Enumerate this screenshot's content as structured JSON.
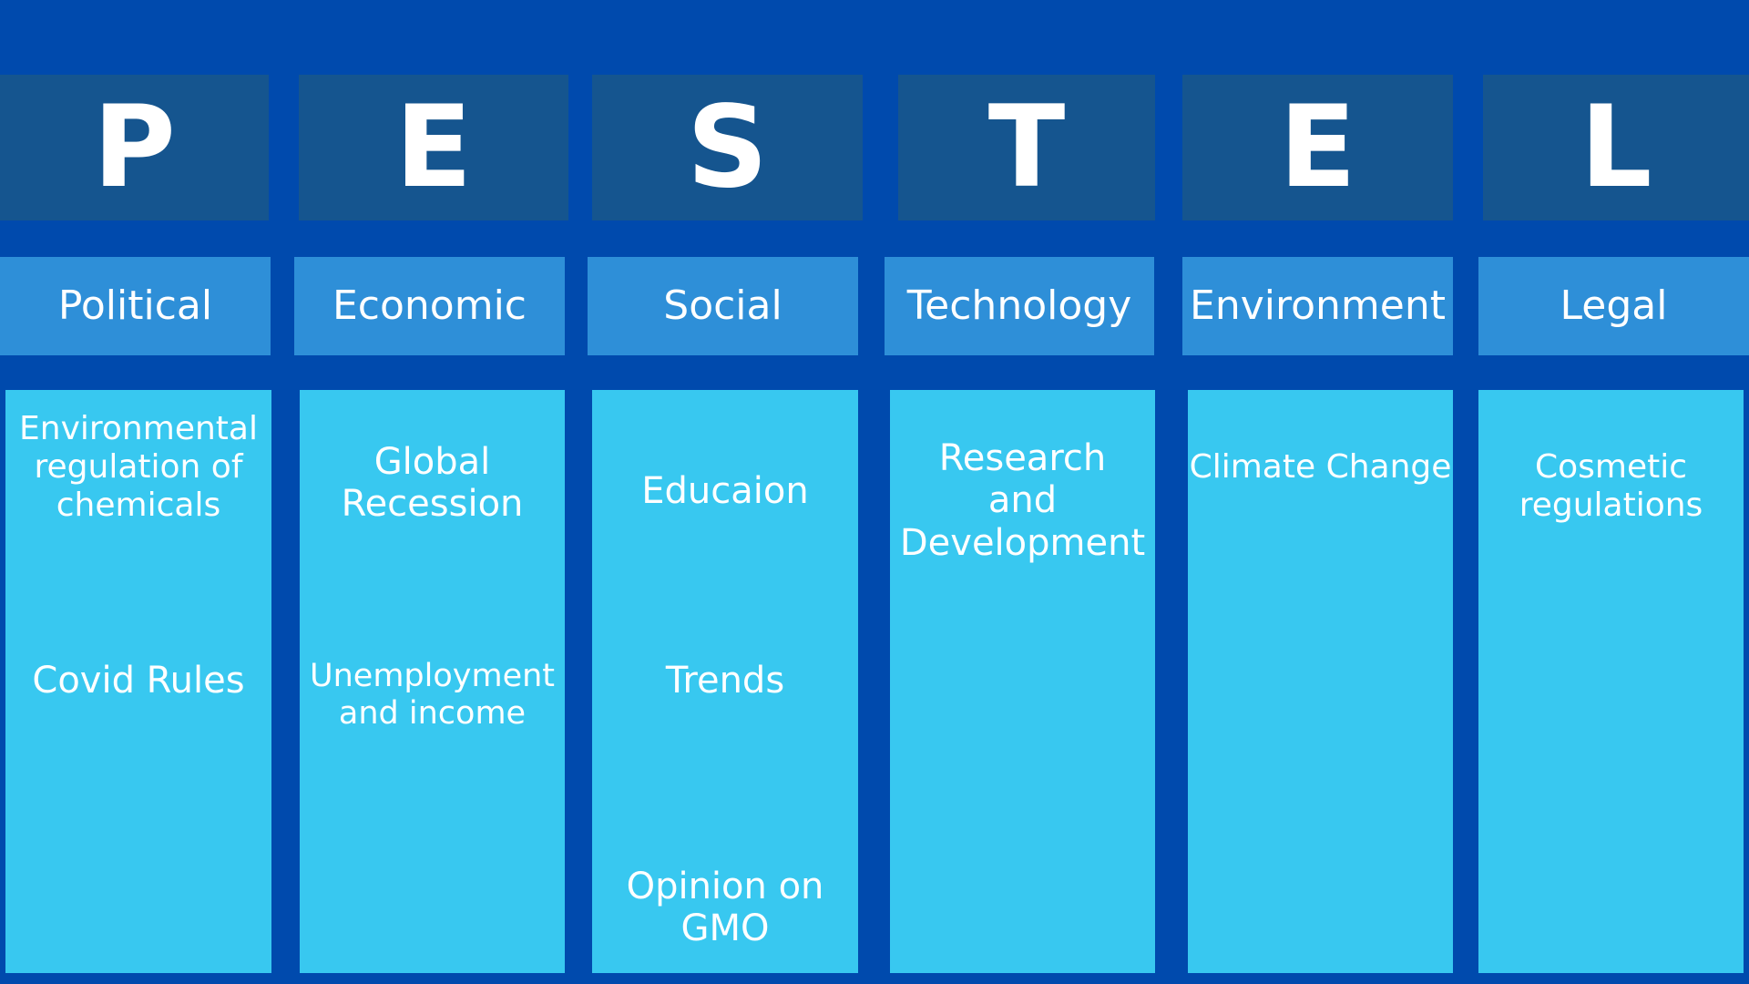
{
  "colors": {
    "background": "#004aad",
    "letter_box": "#15558f",
    "category_box": "#2e8fd8",
    "column": "#38c8f0",
    "text": "#ffffff"
  },
  "letters": [
    "P",
    "E",
    "S",
    "T",
    "E",
    "L"
  ],
  "categories": [
    "Political",
    "Economic",
    "Social",
    "Technology",
    "Environment",
    "Legal"
  ],
  "columns": [
    {
      "items": [
        "Environmental\nregulation of\nchemicals",
        "Covid Rules"
      ]
    },
    {
      "items": [
        "Global\nRecession",
        "Unemployment\nand income"
      ]
    },
    {
      "items": [
        "Educaion",
        "Trends",
        "Opinion on\nGMO"
      ]
    },
    {
      "items": [
        "Research\nand\nDevelopment"
      ]
    },
    {
      "items": [
        "Climate Change"
      ]
    },
    {
      "items": [
        "Cosmetic\nregulations"
      ]
    }
  ]
}
